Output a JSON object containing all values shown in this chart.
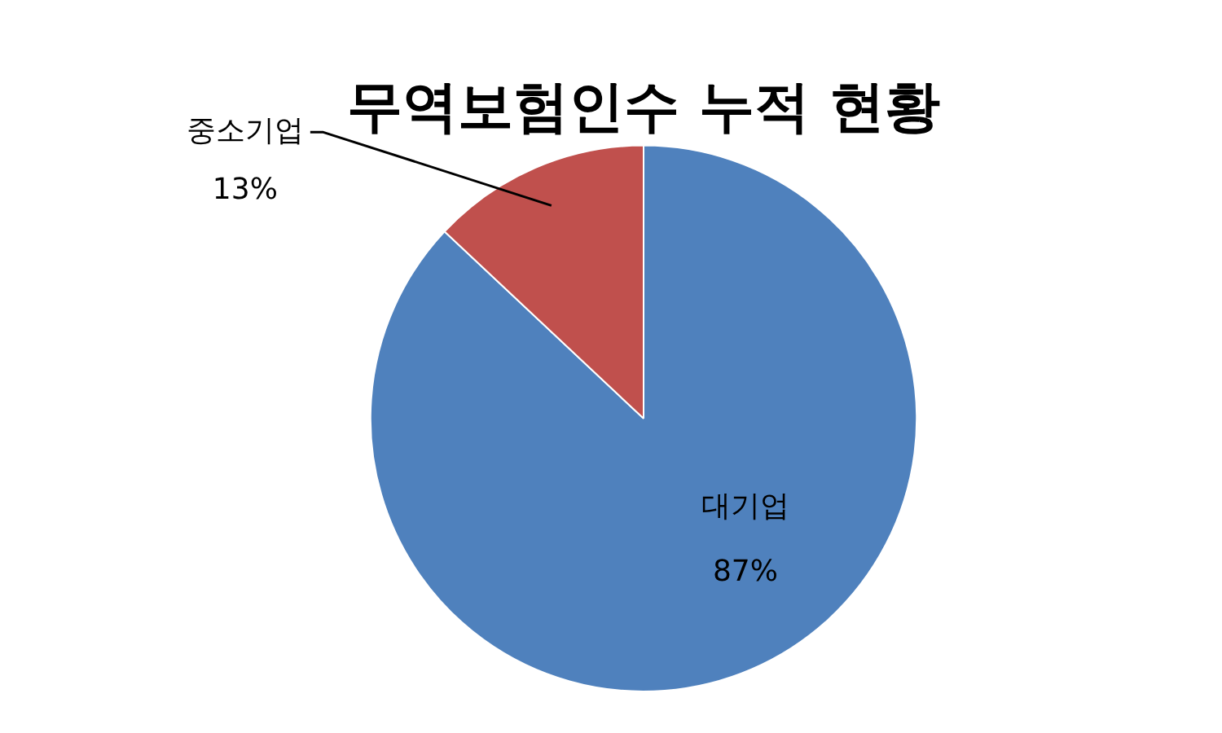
{
  "chart_data": {
    "type": "pie",
    "title": "무역보험인수 누적 현황",
    "categories": [
      "대기업",
      "중소기업"
    ],
    "values": [
      87,
      13
    ],
    "colors": [
      "#4f81bd",
      "#c0504d"
    ],
    "value_labels": [
      "87%",
      "13%"
    ],
    "legend": false
  }
}
